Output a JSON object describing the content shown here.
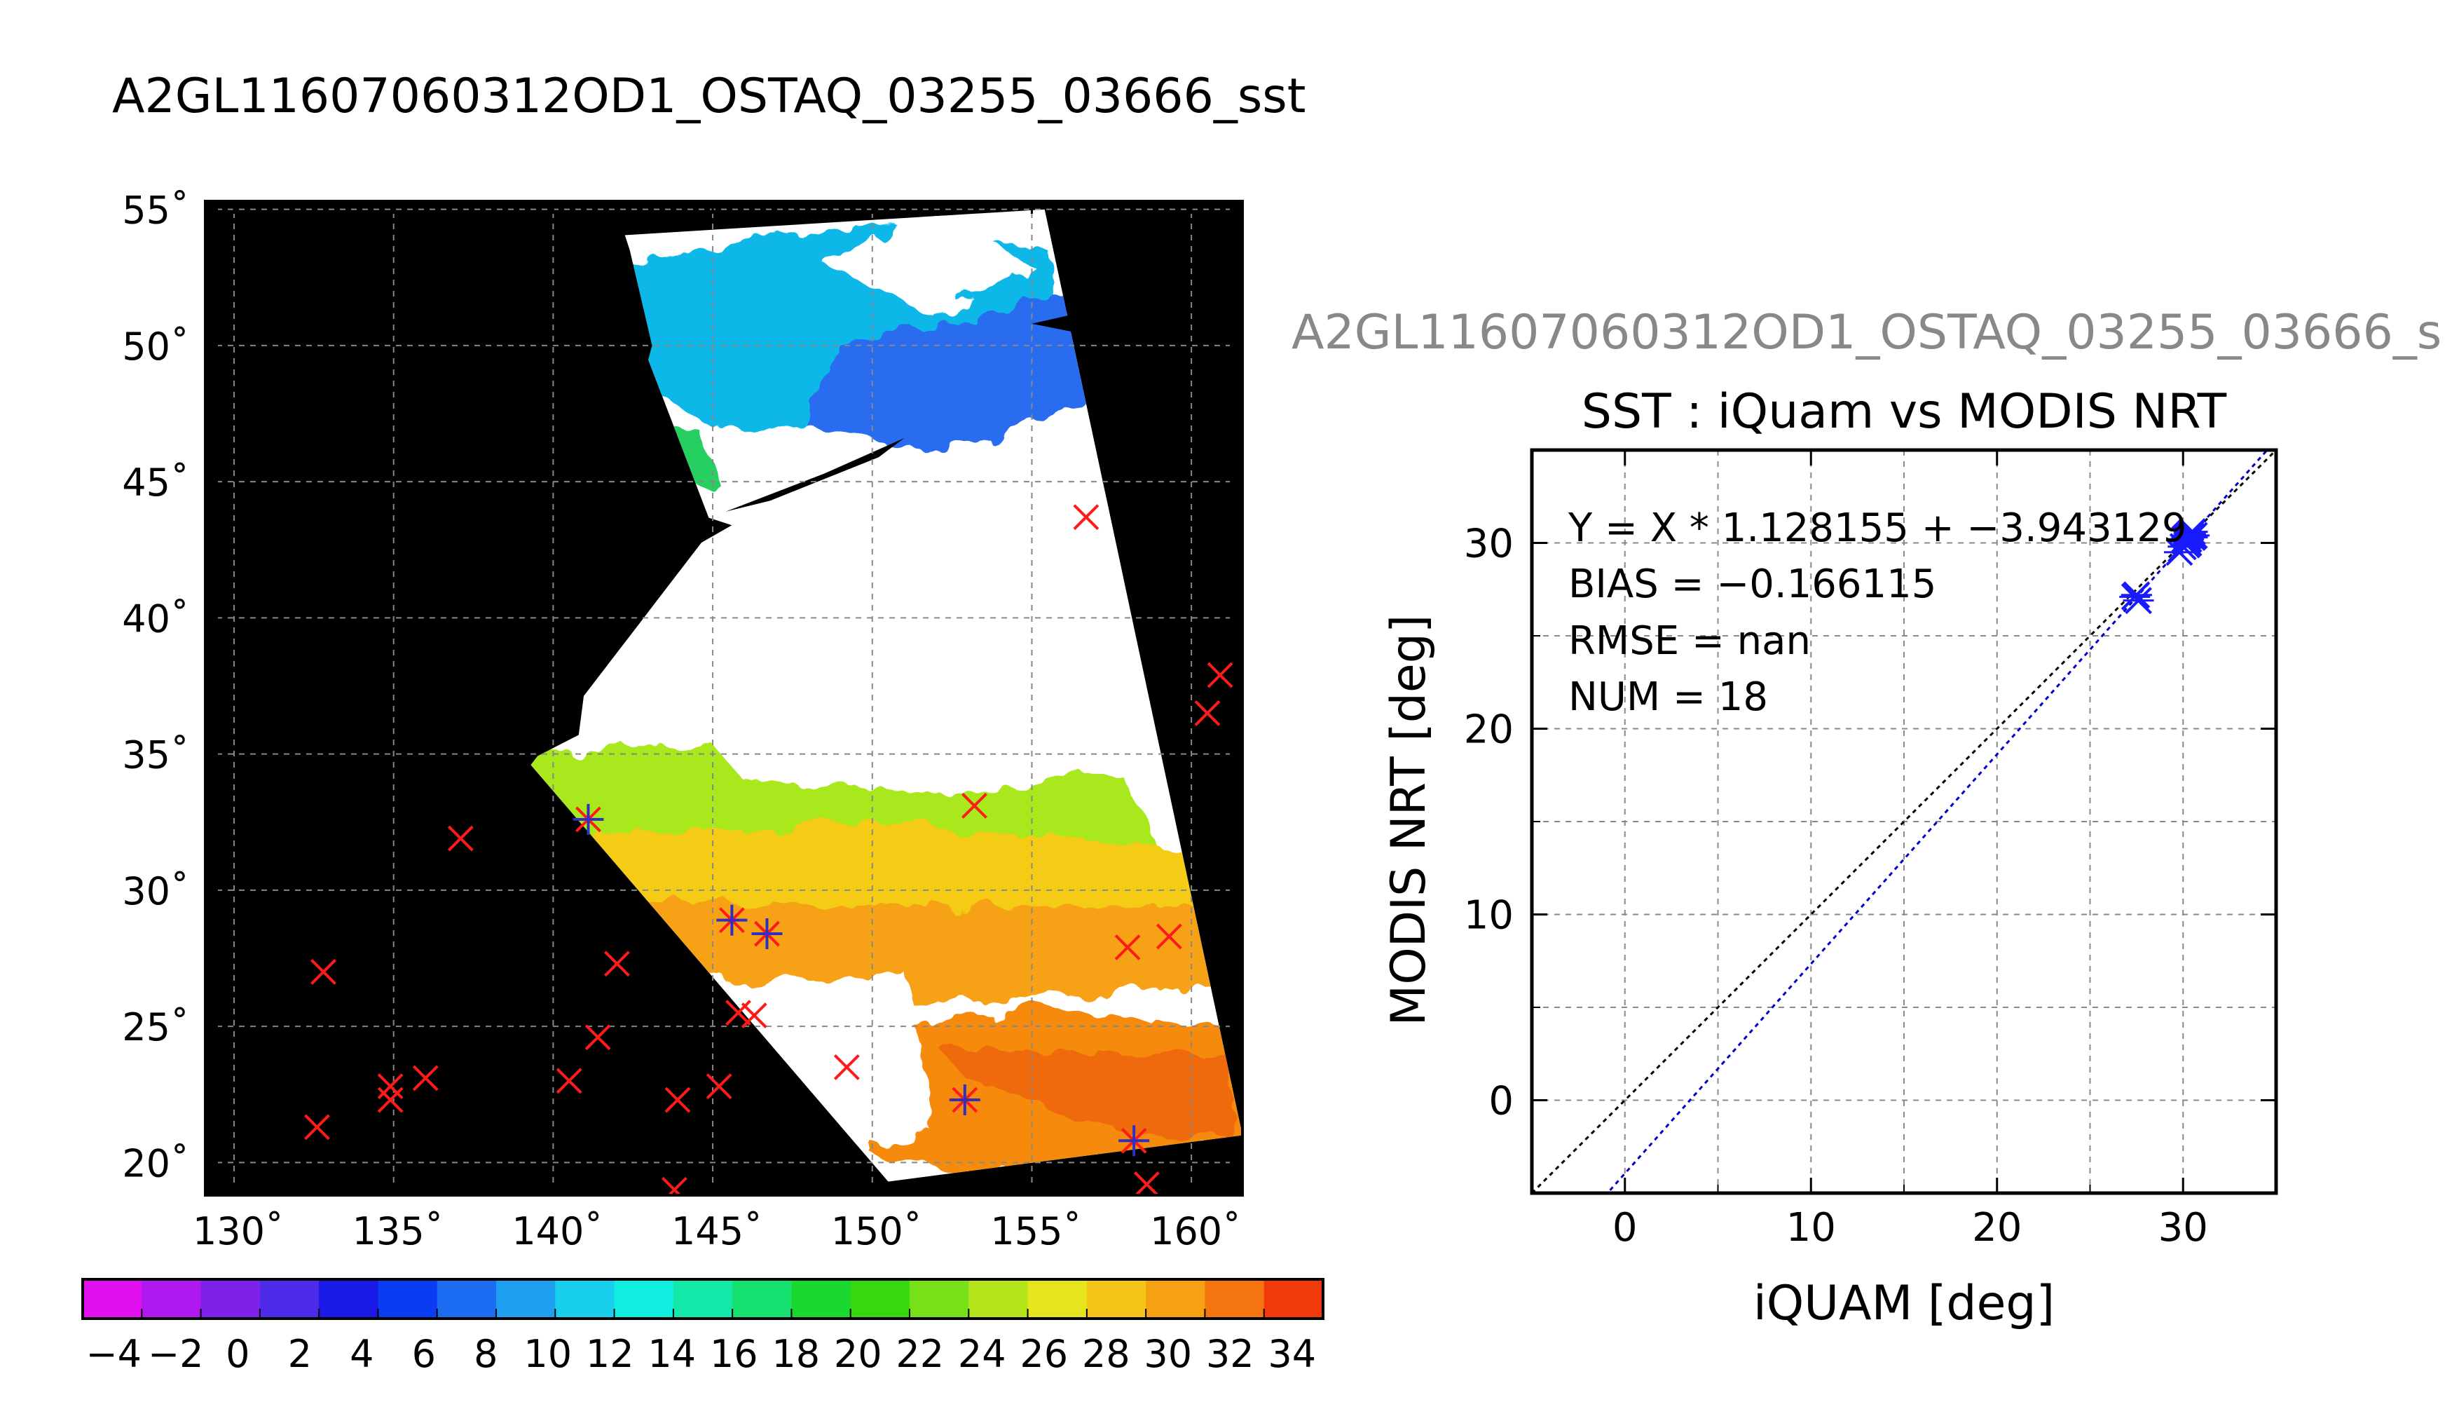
{
  "colors": {
    "ocean_field": "#ffffff",
    "land_mask": "#000000",
    "match_marker": "#ff1a1a",
    "valid_marker": "#3030c0",
    "scatter_marker": "#1a1aff",
    "identity_line": "#000000",
    "fit_line": "#0000cc",
    "grid": "#888888"
  },
  "chart_data": [
    {
      "type": "map",
      "title": "A2GL11607060312OD1_OSTAQ_03255_03666_sst",
      "xticks": [
        "130˚",
        "135˚",
        "140˚",
        "145˚",
        "150˚",
        "155˚",
        "160˚"
      ],
      "yticks": [
        "55˚",
        "50˚",
        "45˚",
        "40˚",
        "35˚",
        "30˚",
        "25˚",
        "20˚"
      ],
      "lon_range": [
        129.1,
        161.6
      ],
      "lat_range": [
        18.8,
        55.3
      ],
      "grid": true,
      "swath_corners": [
        [
          141.5,
          54.0
        ],
        [
          155.4,
          55.0
        ],
        [
          161.6,
          21.0
        ],
        [
          150.5,
          19.3
        ],
        [
          139.3,
          34.6
        ],
        [
          145.0,
          43.3
        ]
      ],
      "match_points": [
        [
          141.1,
          32.6
        ],
        [
          137.1,
          31.9
        ],
        [
          132.8,
          27.0
        ],
        [
          134.9,
          22.8
        ],
        [
          134.9,
          22.3
        ],
        [
          136.0,
          23.1
        ],
        [
          132.6,
          21.3
        ],
        [
          140.5,
          23.0
        ],
        [
          141.4,
          24.6
        ],
        [
          142.0,
          27.3
        ],
        [
          143.9,
          22.3
        ],
        [
          143.8,
          19.0
        ],
        [
          145.2,
          22.8
        ],
        [
          145.6,
          28.9
        ],
        [
          146.7,
          28.4
        ],
        [
          145.8,
          25.5
        ],
        [
          146.3,
          25.4
        ],
        [
          149.2,
          23.5
        ],
        [
          153.2,
          33.1
        ],
        [
          152.9,
          22.3
        ],
        [
          156.7,
          43.7
        ],
        [
          158.2,
          20.8
        ],
        [
          158.6,
          19.2
        ],
        [
          158.0,
          27.9
        ],
        [
          159.3,
          28.3
        ],
        [
          160.5,
          36.5
        ],
        [
          160.9,
          37.9
        ]
      ],
      "valid_points": [
        [
          141.1,
          32.6
        ],
        [
          145.6,
          28.9
        ],
        [
          146.7,
          28.4
        ],
        [
          152.9,
          22.3
        ],
        [
          158.2,
          20.8
        ]
      ]
    },
    {
      "type": "colorbar",
      "range": [
        -5,
        35
      ],
      "tick_labels": [
        "−4",
        "−2",
        "0",
        "2",
        "4",
        "6",
        "8",
        "10",
        "12",
        "14",
        "16",
        "18",
        "20",
        "22",
        "24",
        "26",
        "28",
        "30",
        "32",
        "34"
      ]
    },
    {
      "type": "scatter",
      "header": "A2GL11607060312OD1_OSTAQ_03255_03666_s",
      "title": "SST : iQuam vs MODIS NRT",
      "xlabel": "iQUAM [deg]",
      "ylabel": "MODIS NRT [deg]",
      "xlim": [
        -5,
        35
      ],
      "ylim": [
        -5,
        35
      ],
      "xticks": [
        "0",
        "10",
        "20",
        "30"
      ],
      "yticks": [
        "0",
        "10",
        "20",
        "30"
      ],
      "grid": true,
      "annotations": [
        "Y = X * 1.128155 + −3.943129",
        "BIAS = −0.166115",
        "RMSE = nan",
        "NUM = 18"
      ],
      "fit": {
        "slope": 1.128155,
        "intercept": -3.943129
      },
      "points": [
        [
          27.4,
          27.1
        ],
        [
          27.6,
          26.9
        ],
        [
          27.5,
          27.2
        ],
        [
          29.8,
          29.5
        ],
        [
          30.0,
          29.8
        ],
        [
          30.1,
          30.1
        ],
        [
          30.2,
          30.3
        ],
        [
          30.3,
          30.2
        ],
        [
          30.4,
          30.4
        ],
        [
          30.5,
          30.6
        ],
        [
          30.3,
          30.0
        ],
        [
          30.2,
          29.9
        ],
        [
          30.4,
          30.5
        ],
        [
          30.1,
          30.2
        ],
        [
          30.6,
          30.4
        ],
        [
          30.3,
          30.4
        ],
        [
          30.2,
          30.1
        ],
        [
          30.5,
          30.3
        ]
      ]
    }
  ]
}
